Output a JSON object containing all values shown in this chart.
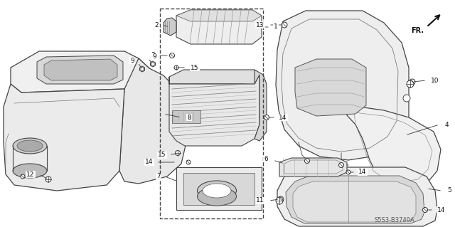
{
  "bg_color": "#ffffff",
  "diagram_id": "S5S3-B3740A",
  "figsize": [
    6.4,
    3.19
  ],
  "dpi": 100
}
